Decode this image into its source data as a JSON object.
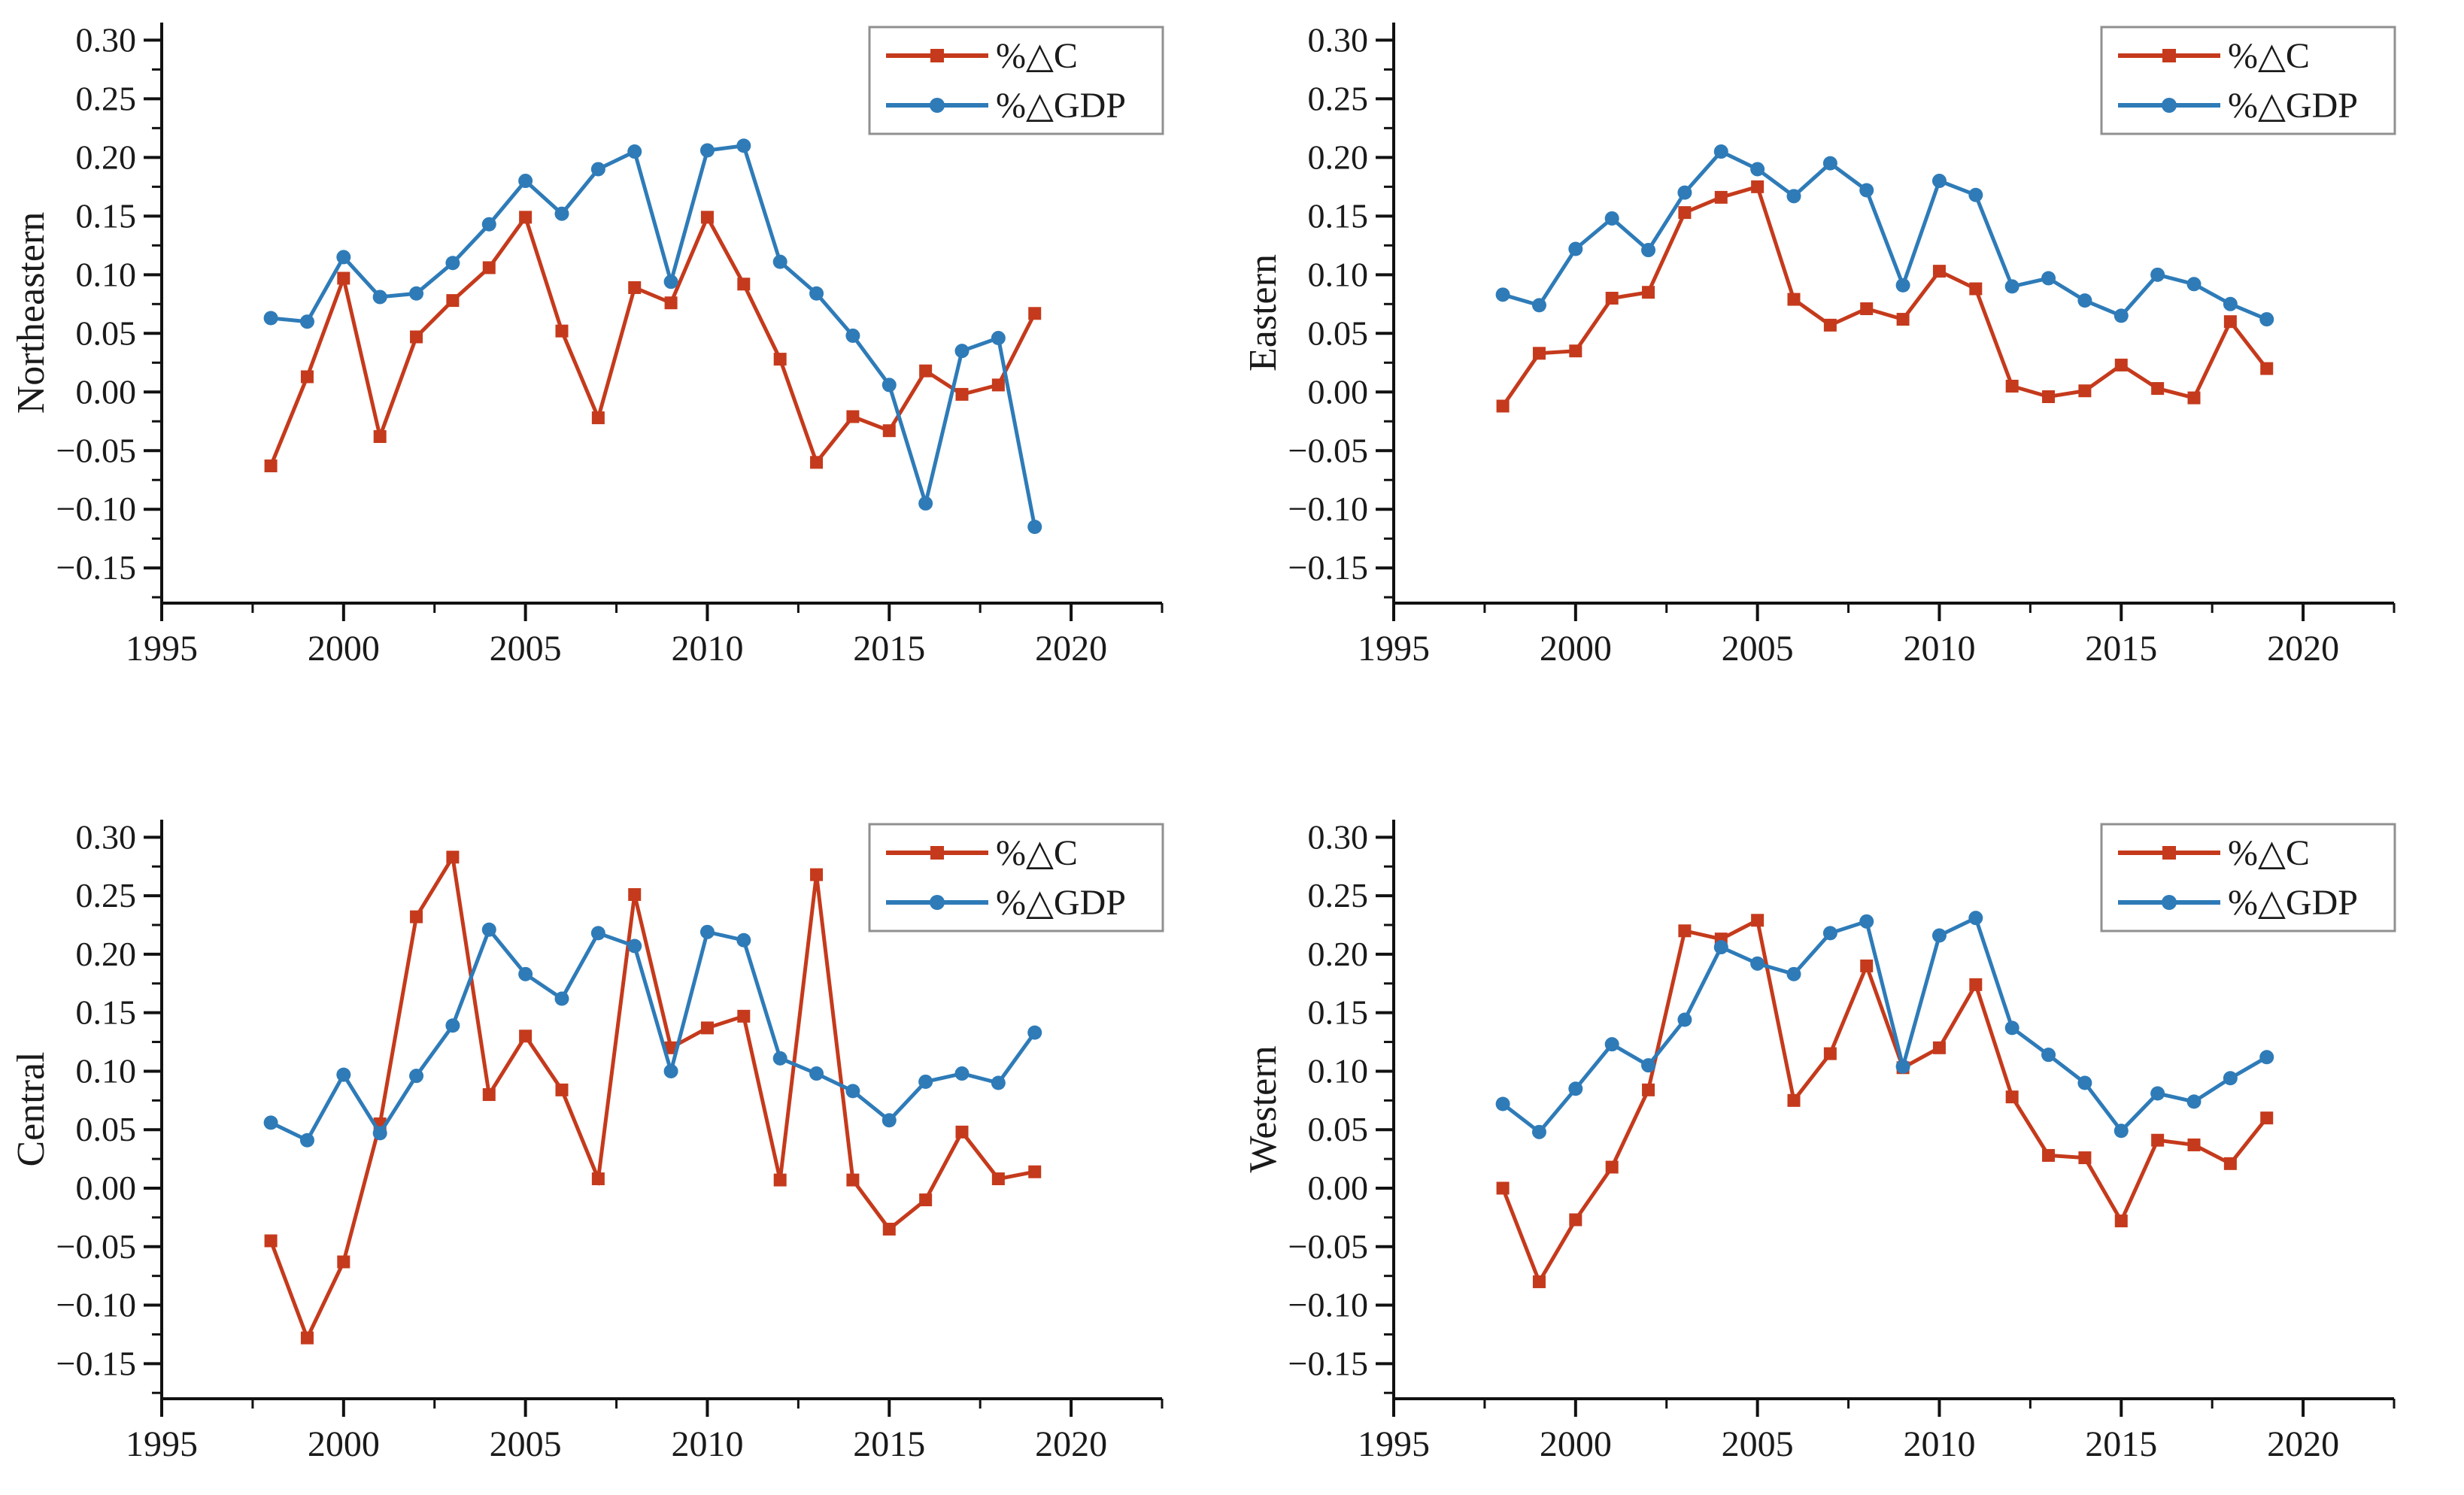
{
  "page": {
    "background": "#ffffff"
  },
  "colors": {
    "c_series": "#c53a1c",
    "gdp_series": "#2e7bb8",
    "axis": "#111111",
    "text": "#1a1a1a",
    "legend_border": "#909090",
    "legend_fill": "#ffffff"
  },
  "legend": {
    "c_label": "%△C",
    "gdp_label": "%△GDP",
    "position": "top-right"
  },
  "axes": {
    "xlim": [
      1995,
      2022.5
    ],
    "ylim": [
      -0.18,
      0.315
    ],
    "x_ticks": [
      1995,
      2000,
      2005,
      2010,
      2015,
      2020
    ],
    "x_minor_ticks": [
      1997.5,
      2002.5,
      2007.5,
      2012.5,
      2017.5,
      2022.5
    ],
    "y_ticks": [
      0.3,
      0.25,
      0.2,
      0.15,
      0.1,
      0.05,
      0.0,
      -0.05,
      -0.1,
      -0.15
    ],
    "y_minor_ticks": [
      0.275,
      0.225,
      0.175,
      0.125,
      0.075,
      0.025,
      -0.025,
      -0.075,
      -0.125,
      -0.175
    ],
    "grid": false
  },
  "chart_data": [
    {
      "type": "line",
      "region": "Northeastern",
      "ylabel": "Northeastern",
      "x": [
        1998,
        1999,
        2000,
        2001,
        2002,
        2003,
        2004,
        2005,
        2006,
        2007,
        2008,
        2009,
        2010,
        2011,
        2012,
        2013,
        2014,
        2015,
        2016,
        2017,
        2018,
        2019
      ],
      "xlim": [
        1995,
        2022.5
      ],
      "ylim": [
        -0.18,
        0.315
      ],
      "legend_position": "top-right",
      "series": [
        {
          "name": "%△C",
          "marker": "square",
          "color_key": "c_series",
          "values": [
            -0.063,
            0.013,
            0.097,
            -0.038,
            0.047,
            0.078,
            0.106,
            0.149,
            0.052,
            -0.022,
            0.089,
            0.076,
            0.149,
            0.092,
            0.028,
            -0.06,
            -0.021,
            -0.033,
            0.018,
            -0.002,
            0.006,
            0.067
          ]
        },
        {
          "name": "%△GDP",
          "marker": "circle",
          "color_key": "gdp_series",
          "values": [
            0.063,
            0.06,
            0.115,
            0.081,
            0.084,
            0.11,
            0.143,
            0.18,
            0.152,
            0.19,
            0.205,
            0.094,
            0.206,
            0.21,
            0.111,
            0.084,
            0.048,
            0.006,
            -0.095,
            0.035,
            0.046,
            -0.115
          ]
        }
      ]
    },
    {
      "type": "line",
      "region": "Eastern",
      "ylabel": "Eastern",
      "x": [
        1998,
        1999,
        2000,
        2001,
        2002,
        2003,
        2004,
        2005,
        2006,
        2007,
        2008,
        2009,
        2010,
        2011,
        2012,
        2013,
        2014,
        2015,
        2016,
        2017,
        2018,
        2019
      ],
      "xlim": [
        1995,
        2022.5
      ],
      "ylim": [
        -0.18,
        0.315
      ],
      "legend_position": "top-right",
      "series": [
        {
          "name": "%△C",
          "marker": "square",
          "color_key": "c_series",
          "values": [
            -0.012,
            0.033,
            0.035,
            0.08,
            0.085,
            0.153,
            0.166,
            0.175,
            0.079,
            0.057,
            0.071,
            0.062,
            0.103,
            0.088,
            0.005,
            -0.004,
            0.001,
            0.023,
            0.003,
            -0.005,
            0.06,
            0.02
          ]
        },
        {
          "name": "%△GDP",
          "marker": "circle",
          "color_key": "gdp_series",
          "values": [
            0.083,
            0.074,
            0.122,
            0.148,
            0.121,
            0.17,
            0.205,
            0.19,
            0.167,
            0.195,
            0.172,
            0.091,
            0.18,
            0.168,
            0.09,
            0.097,
            0.078,
            0.065,
            0.1,
            0.092,
            0.075,
            0.062
          ]
        }
      ]
    },
    {
      "type": "line",
      "region": "Central",
      "ylabel": "Central",
      "x": [
        1998,
        1999,
        2000,
        2001,
        2002,
        2003,
        2004,
        2005,
        2006,
        2007,
        2008,
        2009,
        2010,
        2011,
        2012,
        2013,
        2014,
        2015,
        2016,
        2017,
        2018,
        2019
      ],
      "xlim": [
        1995,
        2022.5
      ],
      "ylim": [
        -0.18,
        0.315
      ],
      "legend_position": "top-right",
      "series": [
        {
          "name": "%△C",
          "marker": "square",
          "color_key": "c_series",
          "values": [
            -0.045,
            -0.128,
            -0.063,
            0.055,
            0.232,
            0.283,
            0.08,
            0.13,
            0.084,
            0.008,
            0.251,
            0.12,
            0.137,
            0.147,
            0.007,
            0.268,
            0.007,
            -0.035,
            -0.01,
            0.048,
            0.008,
            0.014
          ]
        },
        {
          "name": "%△GDP",
          "marker": "circle",
          "color_key": "gdp_series",
          "values": [
            0.056,
            0.041,
            0.097,
            0.047,
            0.096,
            0.139,
            0.221,
            0.183,
            0.162,
            0.218,
            0.207,
            0.1,
            0.219,
            0.212,
            0.111,
            0.098,
            0.083,
            0.058,
            0.091,
            0.098,
            0.09,
            0.133
          ]
        }
      ]
    },
    {
      "type": "line",
      "region": "Western",
      "ylabel": "Western",
      "x": [
        1998,
        1999,
        2000,
        2001,
        2002,
        2003,
        2004,
        2005,
        2006,
        2007,
        2008,
        2009,
        2010,
        2011,
        2012,
        2013,
        2014,
        2015,
        2016,
        2017,
        2018,
        2019
      ],
      "xlim": [
        1995,
        2022.5
      ],
      "ylim": [
        -0.18,
        0.315
      ],
      "legend_position": "top-right",
      "series": [
        {
          "name": "%△C",
          "marker": "square",
          "color_key": "c_series",
          "values": [
            0.0,
            -0.08,
            -0.027,
            0.018,
            0.084,
            0.22,
            0.213,
            0.229,
            0.075,
            0.115,
            0.19,
            0.103,
            0.12,
            0.174,
            0.078,
            0.028,
            0.026,
            -0.028,
            0.041,
            0.037,
            0.021,
            0.06
          ]
        },
        {
          "name": "%△GDP",
          "marker": "circle",
          "color_key": "gdp_series",
          "values": [
            0.072,
            0.048,
            0.085,
            0.123,
            0.105,
            0.144,
            0.206,
            0.192,
            0.183,
            0.218,
            0.228,
            0.104,
            0.216,
            0.231,
            0.137,
            0.114,
            0.09,
            0.049,
            0.081,
            0.074,
            0.094,
            0.112
          ]
        }
      ]
    }
  ]
}
